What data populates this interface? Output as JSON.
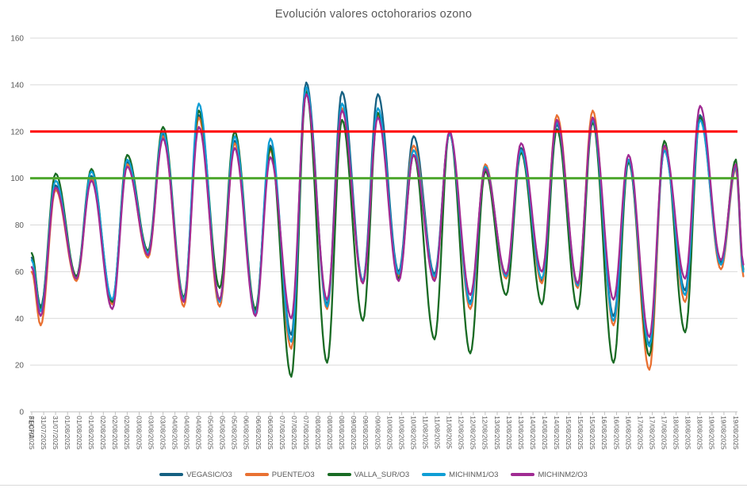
{
  "chart_data": {
    "type": "line",
    "title": "Evolución valores octohorarios ozono",
    "xlabel": "FECHA",
    "ylabel": "",
    "ylim": [
      0,
      160
    ],
    "ytick_step": 20,
    "grid": "horizontal",
    "legend_position": "bottom",
    "text_color": "#595959",
    "grid_color": "#d9d9d9",
    "axis_color": "#bfbfbf",
    "x_dates": [
      "31/07/2025",
      "01/08/2025",
      "02/08/2025",
      "03/08/2025",
      "04/08/2025",
      "05/08/2025",
      "06/08/2025",
      "07/08/2025",
      "08/08/2025",
      "09/08/2025",
      "10/08/2025",
      "11/08/2025",
      "12/08/2025",
      "13/08/2025",
      "14/08/2025",
      "15/08/2025",
      "16/08/2025",
      "17/08/2025",
      "18/08/2025",
      "19/08/2025"
    ],
    "ticks_per_day": 3,
    "tick_interval_hours": 8,
    "sampling": {
      "trough_hour": 6,
      "peak_hour": 16,
      "end_hour": 21
    },
    "reference_lines": [
      {
        "name": "umbral-120",
        "value": 120,
        "color": "#ff0000"
      },
      {
        "name": "umbral-100",
        "value": 100,
        "color": "#4ea72e"
      }
    ],
    "series": [
      {
        "name": "VEGASIC/O3",
        "color": "#156082",
        "start": 66,
        "end": 60,
        "troughs": [
          45,
          58,
          48,
          68,
          48,
          48,
          43,
          33,
          46,
          56,
          60,
          59,
          47,
          58,
          56,
          54,
          41,
          29,
          52,
          64
        ],
        "peaks": [
          97,
          101,
          107,
          119,
          127,
          116,
          114,
          141,
          137,
          136,
          118,
          119,
          104,
          113,
          123,
          126,
          108,
          112,
          127,
          106
        ]
      },
      {
        "name": "PUENTE/O3",
        "color": "#e97132",
        "start": 60,
        "end": 58,
        "troughs": [
          37,
          56,
          46,
          66,
          45,
          45,
          42,
          27,
          44,
          55,
          58,
          57,
          44,
          57,
          55,
          53,
          37,
          18,
          47,
          61
        ],
        "peaks": [
          95,
          100,
          106,
          118,
          126,
          115,
          112,
          138,
          130,
          127,
          114,
          119,
          106,
          112,
          127,
          129,
          108,
          113,
          126,
          104
        ]
      },
      {
        "name": "VALLA_SUR/O3",
        "color": "#196b24",
        "start": 68,
        "end": 61,
        "troughs": [
          44,
          58,
          47,
          69,
          49,
          53,
          44,
          15,
          21,
          39,
          57,
          31,
          25,
          50,
          46,
          44,
          21,
          24,
          34,
          63
        ],
        "peaks": [
          102,
          104,
          110,
          122,
          129,
          120,
          113,
          137,
          125,
          128,
          110,
          120,
          103,
          111,
          121,
          124,
          107,
          116,
          126,
          108
        ]
      },
      {
        "name": "MICHINM1/O3",
        "color": "#0f9ed5",
        "start": 65,
        "end": 60,
        "troughs": [
          43,
          57,
          48,
          68,
          48,
          47,
          42,
          30,
          45,
          56,
          59,
          58,
          46,
          58,
          57,
          54,
          39,
          28,
          50,
          63
        ],
        "peaks": [
          99,
          103,
          108,
          120,
          132,
          118,
          117,
          139,
          132,
          130,
          112,
          119,
          105,
          112,
          124,
          125,
          108,
          112,
          125,
          105
        ]
      },
      {
        "name": "MICHINM2/O3",
        "color": "#a02b93",
        "start": 62,
        "end": 63,
        "troughs": [
          41,
          57,
          44,
          67,
          47,
          48,
          41,
          40,
          48,
          55,
          56,
          56,
          50,
          59,
          60,
          55,
          48,
          32,
          57,
          65
        ],
        "peaks": [
          96,
          99,
          105,
          117,
          122,
          113,
          109,
          136,
          129,
          126,
          110,
          120,
          104,
          115,
          125,
          126,
          110,
          114,
          131,
          106
        ]
      }
    ]
  }
}
